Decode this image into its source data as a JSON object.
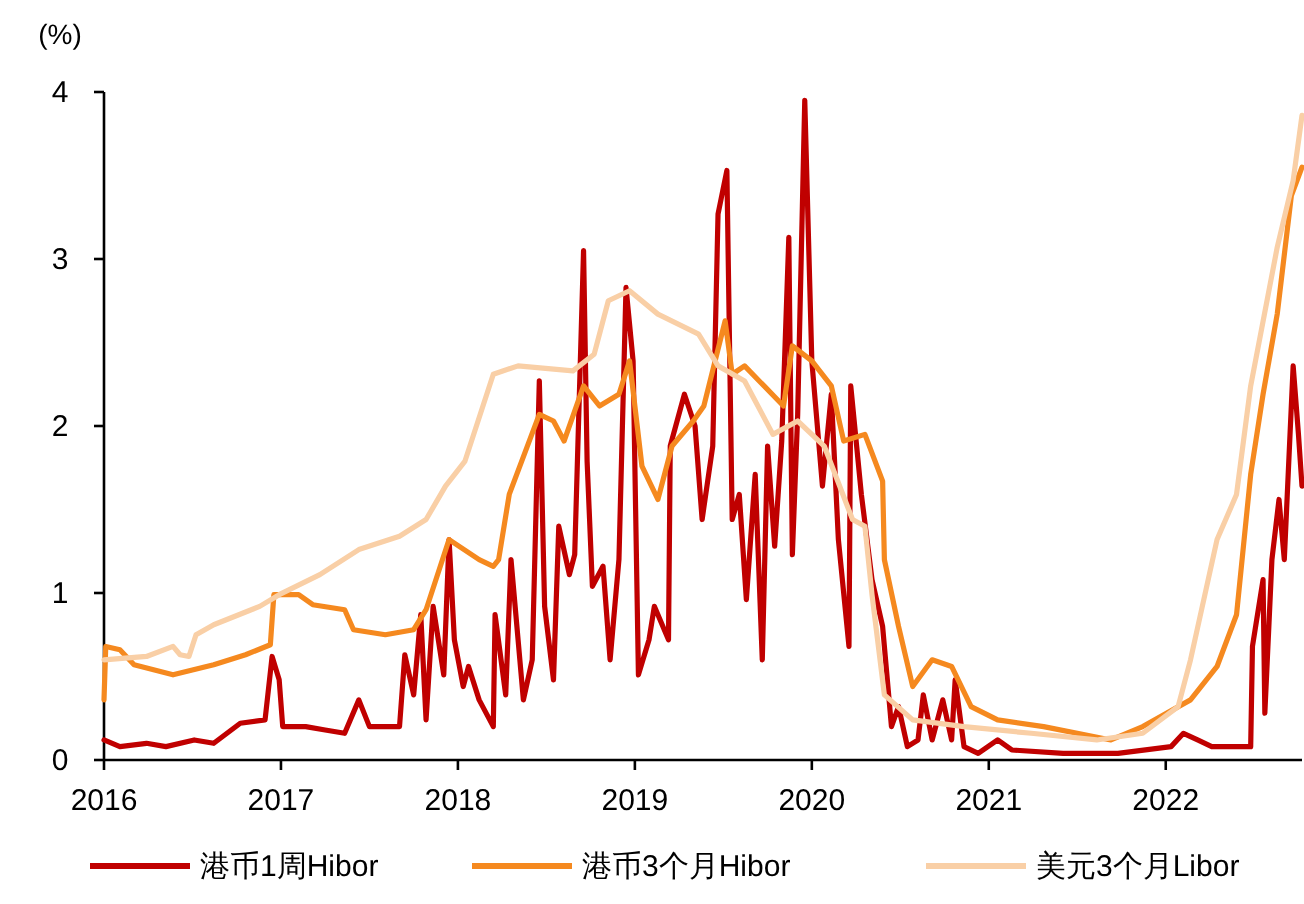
{
  "chart_data": {
    "type": "line",
    "ylabel": "(%)",
    "xlim": [
      2016,
      2022.77
    ],
    "ylim": [
      0,
      4
    ],
    "xticks": [
      2016,
      2017,
      2018,
      2019,
      2020,
      2021,
      2022
    ],
    "yticks": [
      0,
      1,
      2,
      3,
      4
    ],
    "grid": false,
    "legend": "bottom",
    "marker": "none",
    "line_style": "solid",
    "series": [
      {
        "name": "港币1周Hibor",
        "color": "#c00000",
        "x": [
          2016.0,
          2016.09,
          2016.24,
          2016.35,
          2016.51,
          2016.62,
          2016.77,
          2016.91,
          2016.95,
          2016.99,
          2017.01,
          2017.14,
          2017.25,
          2017.36,
          2017.44,
          2017.5,
          2017.67,
          2017.7,
          2017.75,
          2017.79,
          2017.82,
          2017.86,
          2017.92,
          2017.95,
          2017.98,
          2018.03,
          2018.06,
          2018.12,
          2018.2,
          2018.21,
          2018.27,
          2018.3,
          2018.37,
          2018.42,
          2018.46,
          2018.49,
          2018.54,
          2018.57,
          2018.63,
          2018.66,
          2018.71,
          2018.73,
          2018.76,
          2018.82,
          2018.86,
          2018.91,
          2018.95,
          2018.99,
          2019.02,
          2019.08,
          2019.11,
          2019.19,
          2019.2,
          2019.28,
          2019.34,
          2019.38,
          2019.44,
          2019.47,
          2019.52,
          2019.55,
          2019.59,
          2019.63,
          2019.68,
          2019.72,
          2019.75,
          2019.79,
          2019.83,
          2019.87,
          2019.89,
          2019.92,
          2019.96,
          2020.0,
          2020.06,
          2020.11,
          2020.15,
          2020.21,
          2020.22,
          2020.28,
          2020.34,
          2020.4,
          2020.45,
          2020.49,
          2020.54,
          2020.6,
          2020.63,
          2020.68,
          2020.74,
          2020.79,
          2020.81,
          2020.86,
          2020.94,
          2021.05,
          2021.13,
          2021.42,
          2021.73,
          2022.03,
          2022.1,
          2022.18,
          2022.26,
          2022.48,
          2022.49,
          2022.55,
          2022.56,
          2022.6,
          2022.64,
          2022.67,
          2022.72,
          2022.75,
          2022.77
        ],
        "values": [
          0.12,
          0.08,
          0.1,
          0.08,
          0.12,
          0.1,
          0.22,
          0.24,
          0.62,
          0.48,
          0.2,
          0.2,
          0.18,
          0.16,
          0.36,
          0.2,
          0.2,
          0.63,
          0.39,
          0.87,
          0.24,
          0.92,
          0.51,
          1.32,
          0.72,
          0.44,
          0.56,
          0.36,
          0.2,
          0.87,
          0.39,
          1.2,
          0.36,
          0.6,
          2.27,
          0.92,
          0.48,
          1.4,
          1.11,
          1.23,
          3.05,
          1.79,
          1.04,
          1.16,
          0.6,
          1.2,
          2.83,
          2.39,
          0.51,
          0.72,
          0.92,
          0.72,
          1.88,
          2.19,
          2.0,
          1.44,
          1.88,
          3.27,
          3.53,
          1.44,
          1.59,
          0.96,
          1.71,
          0.6,
          1.88,
          1.28,
          1.91,
          3.13,
          1.23,
          2.07,
          3.95,
          2.39,
          1.64,
          2.19,
          1.32,
          0.68,
          2.24,
          1.59,
          1.08,
          0.8,
          0.2,
          0.32,
          0.08,
          0.12,
          0.39,
          0.12,
          0.36,
          0.12,
          0.48,
          0.08,
          0.04,
          0.12,
          0.06,
          0.04,
          0.04,
          0.08,
          0.16,
          0.12,
          0.08,
          0.08,
          0.68,
          1.08,
          0.28,
          1.2,
          1.56,
          1.2,
          2.36,
          1.95,
          1.64
        ]
      },
      {
        "name": "港币3个月Hibor",
        "color": "#f5891f",
        "x": [
          2016.0,
          2016.01,
          2016.09,
          2016.17,
          2016.39,
          2016.62,
          2016.8,
          2016.94,
          2016.96,
          2017.1,
          2017.18,
          2017.36,
          2017.41,
          2017.59,
          2017.75,
          2017.82,
          2017.95,
          2018.12,
          2018.2,
          2018.23,
          2018.29,
          2018.46,
          2018.54,
          2018.6,
          2018.71,
          2018.8,
          2018.91,
          2018.97,
          2019.04,
          2019.13,
          2019.21,
          2019.33,
          2019.39,
          2019.51,
          2019.55,
          2019.62,
          2019.73,
          2019.84,
          2019.89,
          2020.0,
          2020.11,
          2020.18,
          2020.3,
          2020.4,
          2020.41,
          2020.49,
          2020.57,
          2020.68,
          2020.79,
          2020.9,
          2021.05,
          2021.31,
          2021.69,
          2021.87,
          2022.14,
          2022.29,
          2022.4,
          2022.48,
          2022.55,
          2022.63,
          2022.71,
          2022.77
        ],
        "values": [
          0.36,
          0.68,
          0.66,
          0.57,
          0.51,
          0.57,
          0.63,
          0.69,
          0.99,
          0.99,
          0.93,
          0.9,
          0.78,
          0.75,
          0.78,
          0.9,
          1.32,
          1.2,
          1.16,
          1.2,
          1.59,
          2.07,
          2.03,
          1.91,
          2.24,
          2.12,
          2.19,
          2.39,
          1.76,
          1.56,
          1.88,
          2.03,
          2.12,
          2.63,
          2.31,
          2.36,
          2.24,
          2.12,
          2.48,
          2.39,
          2.24,
          1.91,
          1.95,
          1.67,
          1.2,
          0.8,
          0.44,
          0.6,
          0.56,
          0.32,
          0.24,
          0.2,
          0.12,
          0.2,
          0.36,
          0.56,
          0.87,
          1.71,
          2.19,
          2.67,
          3.38,
          3.55
        ]
      },
      {
        "name": "美元3个月Libor",
        "color": "#f9cfa6",
        "x": [
          2016.0,
          2016.24,
          2016.39,
          2016.43,
          2016.48,
          2016.52,
          2016.62,
          2016.88,
          2016.99,
          2017.22,
          2017.44,
          2017.67,
          2017.82,
          2017.93,
          2018.04,
          2018.2,
          2018.34,
          2018.65,
          2018.77,
          2018.85,
          2018.97,
          2019.13,
          2019.36,
          2019.47,
          2019.62,
          2019.78,
          2019.92,
          2020.07,
          2020.23,
          2020.3,
          2020.34,
          2020.41,
          2020.57,
          2020.86,
          2021.24,
          2021.61,
          2021.87,
          2022.07,
          2022.14,
          2022.29,
          2022.4,
          2022.48,
          2022.63,
          2022.72,
          2022.77
        ],
        "values": [
          0.6,
          0.62,
          0.68,
          0.63,
          0.62,
          0.75,
          0.81,
          0.92,
          0.99,
          1.11,
          1.26,
          1.34,
          1.44,
          1.64,
          1.79,
          2.31,
          2.36,
          2.33,
          2.43,
          2.75,
          2.81,
          2.67,
          2.55,
          2.36,
          2.27,
          1.95,
          2.03,
          1.88,
          1.44,
          1.4,
          0.99,
          0.39,
          0.24,
          0.2,
          0.16,
          0.12,
          0.16,
          0.32,
          0.6,
          1.32,
          1.59,
          2.24,
          3.07,
          3.47,
          3.86
        ]
      }
    ]
  }
}
